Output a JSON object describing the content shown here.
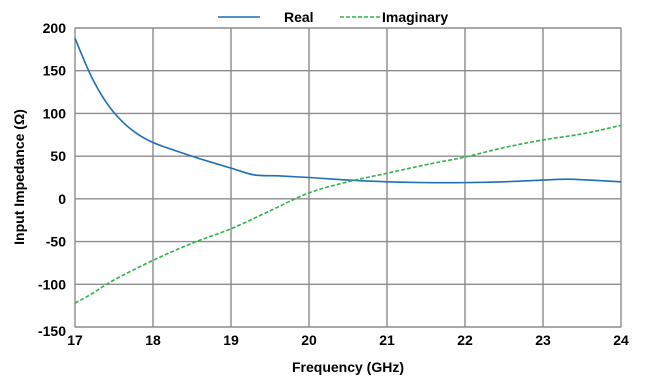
{
  "chart_data": {
    "type": "line",
    "xlabel": "Frequency (GHz)",
    "ylabel": "Input Impedance (Ω)",
    "xlim": [
      17,
      24
    ],
    "ylim": [
      -150,
      200
    ],
    "xticks": [
      "17",
      "18",
      "19",
      "20",
      "21",
      "22",
      "23",
      "24"
    ],
    "yticks": [
      "200",
      "150",
      "100",
      "50",
      "0",
      "-50",
      "-100",
      "-150"
    ],
    "grid": true,
    "legend_position": "top-center",
    "series": [
      {
        "name": "Real",
        "color": "#1f6fb4",
        "dash": "solid",
        "x": [
          17.0,
          17.2,
          17.4,
          17.6,
          17.8,
          18.0,
          18.3,
          18.6,
          19.0,
          19.3,
          19.6,
          20.0,
          20.5,
          21.0,
          21.5,
          22.0,
          22.5,
          23.0,
          23.3,
          23.6,
          24.0
        ],
        "y": [
          188,
          145,
          113,
          91,
          76,
          66,
          56,
          47,
          36,
          28,
          27,
          25,
          22,
          20,
          19,
          19,
          20,
          22,
          23,
          22,
          20
        ]
      },
      {
        "name": "Imaginary",
        "color": "#2db34a",
        "dash": "dashed",
        "x": [
          17.0,
          17.2,
          17.5,
          18.0,
          18.5,
          19.0,
          19.5,
          20.0,
          20.5,
          21.0,
          21.5,
          22.0,
          22.5,
          23.0,
          23.5,
          24.0
        ],
        "y": [
          -122,
          -112,
          -95,
          -72,
          -52,
          -35,
          -14,
          7,
          20,
          30,
          40,
          49,
          60,
          69,
          76,
          86
        ]
      }
    ]
  }
}
